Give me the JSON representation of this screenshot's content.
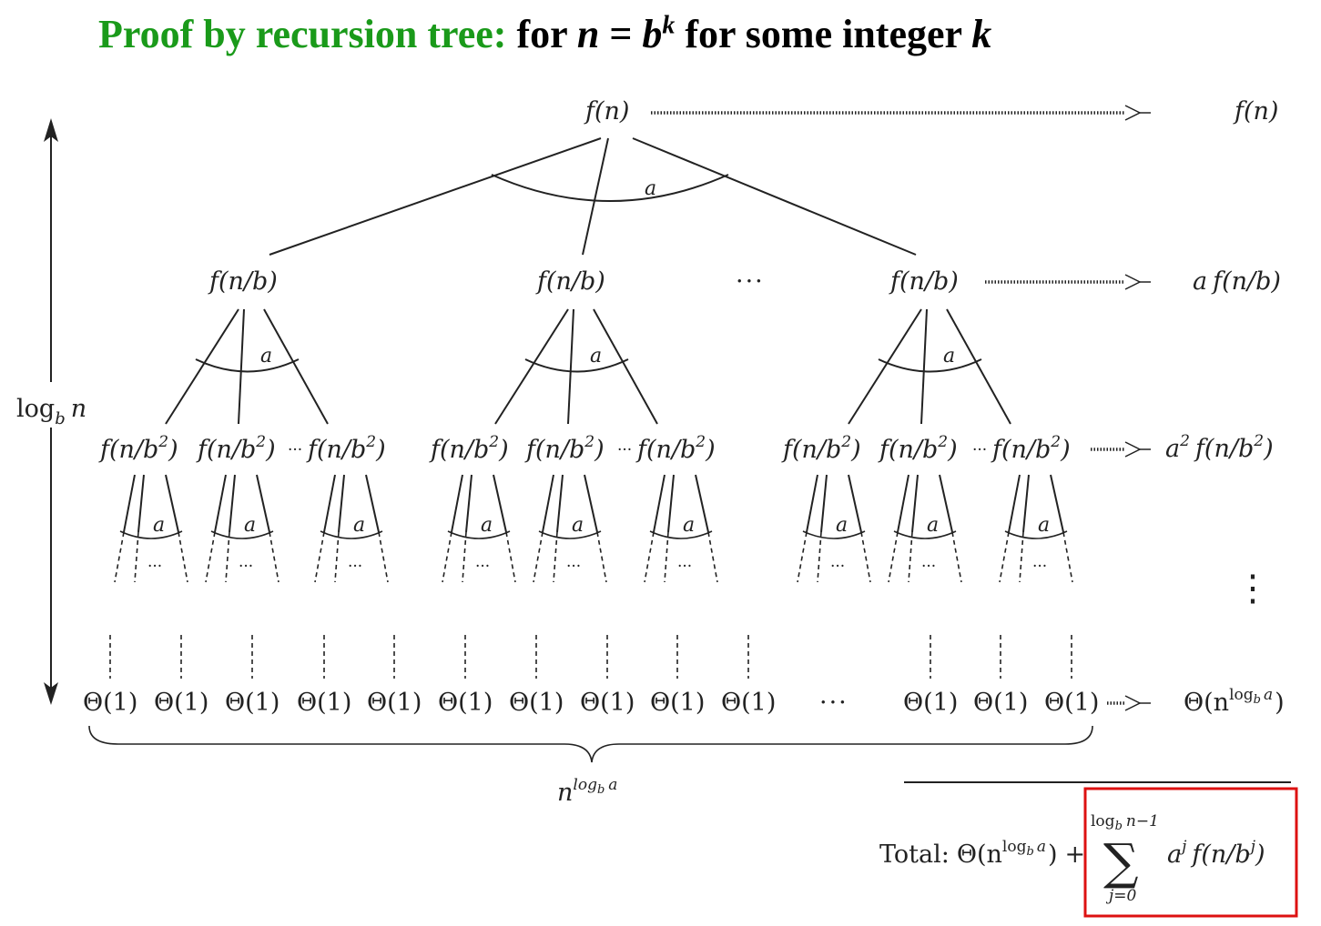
{
  "title": {
    "green": "Proof by recursion tree:",
    "rest_pre": "for ",
    "n": "n",
    "eq": " = ",
    "b": "b",
    "k": "k",
    "rest_post": " for some integer ",
    "k2": "k",
    "green_color": "#1a9a1a"
  },
  "tree": {
    "root": "f(n)",
    "level1_node": "f(n/b)",
    "level2_node_base": "f(n/b",
    "level2_exp": "2",
    "level2_close": ")",
    "branch_label": "a",
    "ellipsis": "···",
    "small_ellipsis": "···",
    "vdots": "⋮",
    "leaf": "Θ(1)",
    "height_label_base": "log",
    "height_label_sub": "b",
    "height_label_n": "n",
    "leaves_count_base": "n",
    "leaves_count_exp": "log",
    "leaves_count_exp_sub": "b",
    "leaves_count_exp_a": "a"
  },
  "costs": {
    "level0": "f(n)",
    "level1_a": "a",
    "level1_f": "f(n/b)",
    "level2_a": "a",
    "level2_exp": "2",
    "level2_f_base": "f(n/b",
    "level2_f_exp": "2",
    "level2_close": ")",
    "leaf_base": "Θ(n",
    "leaf_exp": "log",
    "leaf_exp_sub": "b",
    "leaf_exp_a": "a",
    "leaf_close": ")"
  },
  "total": {
    "label": "Total:",
    "theta": "Θ(n",
    "exp": "log",
    "exp_sub": "b",
    "exp_a": "a",
    "close": ")",
    "plus": "+",
    "sum_upper_base": "log",
    "sum_upper_sub": "b",
    "sum_upper_rest": "n−1",
    "sigma": "∑",
    "sum_lower": "j=0",
    "term_a": "a",
    "term_j": "j",
    "term_f": "f(n/b",
    "term_exp": "j",
    "term_close": ")",
    "highlight_color": "#dd1111"
  }
}
